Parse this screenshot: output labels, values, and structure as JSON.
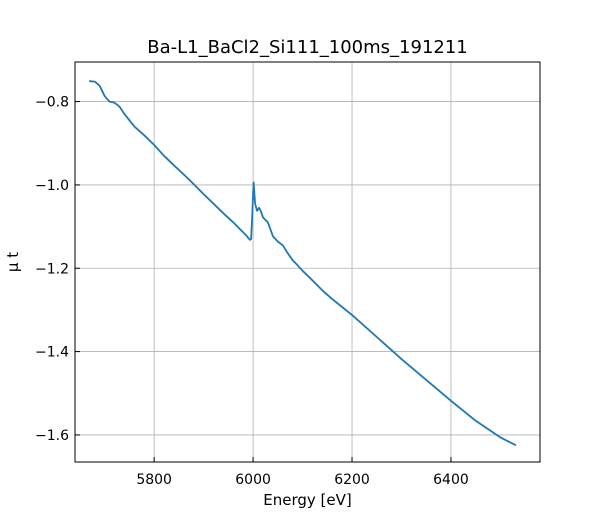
{
  "chart_data": {
    "type": "line",
    "title": "Ba-L1_BaCl2_Si111_100ms_191211",
    "xlabel": "Energy [eV]",
    "ylabel": "μ t",
    "xlim": [
      5640,
      6580
    ],
    "ylim": [
      -1.665,
      -0.705
    ],
    "grid": true,
    "x_ticks": [
      5800,
      6000,
      6200,
      6400
    ],
    "x_tick_labels": [
      "5800",
      "6000",
      "6200",
      "6400"
    ],
    "y_ticks": [
      -0.8,
      -1.0,
      -1.2,
      -1.4,
      -1.6
    ],
    "y_tick_labels": [
      "−0.8",
      "−1.0",
      "−1.2",
      "−1.4",
      "−1.6"
    ],
    "series": [
      {
        "color": "#1f77b4",
        "x": [
          5670,
          5680,
          5690,
          5700,
          5710,
          5720,
          5730,
          5740,
          5760,
          5780,
          5800,
          5820,
          5840,
          5860,
          5880,
          5900,
          5920,
          5940,
          5960,
          5970,
          5980,
          5986,
          5990,
          5994,
          5996,
          5998,
          6001,
          6004,
          6008,
          6012,
          6016,
          6020,
          6030,
          6040,
          6050,
          6060,
          6070,
          6080,
          6090,
          6100,
          6120,
          6140,
          6160,
          6180,
          6200,
          6250,
          6300,
          6350,
          6400,
          6450,
          6500,
          6530
        ],
        "y": [
          -0.751,
          -0.752,
          -0.762,
          -0.787,
          -0.8,
          -0.803,
          -0.812,
          -0.83,
          -0.86,
          -0.881,
          -0.904,
          -0.93,
          -0.953,
          -0.975,
          -0.998,
          -1.022,
          -1.045,
          -1.068,
          -1.09,
          -1.102,
          -1.114,
          -1.121,
          -1.127,
          -1.132,
          -1.13,
          -1.08,
          -0.994,
          -1.045,
          -1.062,
          -1.055,
          -1.064,
          -1.078,
          -1.09,
          -1.123,
          -1.136,
          -1.145,
          -1.164,
          -1.181,
          -1.193,
          -1.206,
          -1.229,
          -1.253,
          -1.274,
          -1.293,
          -1.312,
          -1.365,
          -1.418,
          -1.468,
          -1.518,
          -1.566,
          -1.606,
          -1.624
        ]
      }
    ]
  }
}
